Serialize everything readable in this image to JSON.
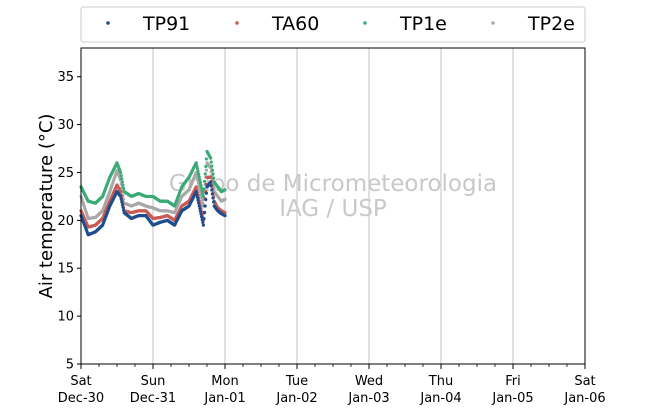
{
  "chart_data": {
    "type": "scatter",
    "ylabel": "Air temperature (°C)",
    "ylim": [
      5,
      38
    ],
    "yticks": [
      5,
      10,
      15,
      20,
      25,
      30,
      35
    ],
    "xlim_days": [
      0,
      7
    ],
    "xticks": [
      {
        "day": 0,
        "dow": "Sat",
        "date": "Dec-30"
      },
      {
        "day": 1,
        "dow": "Sun",
        "date": "Dec-31"
      },
      {
        "day": 2,
        "dow": "Mon",
        "date": "Jan-01"
      },
      {
        "day": 3,
        "dow": "Tue",
        "date": "Jan-02"
      },
      {
        "day": 4,
        "dow": "Wed",
        "date": "Jan-03"
      },
      {
        "day": 5,
        "dow": "Thu",
        "date": "Jan-04"
      },
      {
        "day": 6,
        "dow": "Fri",
        "date": "Jan-05"
      },
      {
        "day": 7,
        "dow": "Sat",
        "date": "Jan-06"
      }
    ],
    "grid": "vertical",
    "legend_position": "top",
    "watermark": [
      "Grupo de Micrometeorologia",
      "IAG / USP"
    ],
    "x": [
      0,
      0.1,
      0.2,
      0.3,
      0.4,
      0.5,
      0.55,
      0.6,
      0.7,
      0.8,
      0.9,
      1.0,
      1.1,
      1.2,
      1.3,
      1.4,
      1.5,
      1.6,
      1.7,
      1.75,
      1.8,
      1.85,
      1.9,
      1.95,
      2.0
    ],
    "series": [
      {
        "name": "TP91",
        "color": "#1f4e8c",
        "values": [
          20.5,
          18.5,
          18.8,
          19.5,
          21.5,
          23.0,
          22.5,
          20.8,
          20.2,
          20.5,
          20.5,
          19.5,
          19.8,
          20.0,
          19.5,
          21.0,
          21.5,
          23.0,
          19.5,
          23.5,
          24.0,
          21.5,
          21.0,
          20.7,
          20.5
        ]
      },
      {
        "name": "TA60",
        "color": "#c85a54",
        "values": [
          21.0,
          19.3,
          19.5,
          20.2,
          22.0,
          23.7,
          23.0,
          21.0,
          20.8,
          21.0,
          21.0,
          20.2,
          20.3,
          20.5,
          20.0,
          21.5,
          22.0,
          23.5,
          20.0,
          24.5,
          24.5,
          22.0,
          21.3,
          21.0,
          20.8
        ]
      },
      {
        "name": "TP1e",
        "color": "#3aaa76",
        "values": [
          23.5,
          22.0,
          21.8,
          22.5,
          24.5,
          26.0,
          25.0,
          23.0,
          22.5,
          22.8,
          22.5,
          22.5,
          22.0,
          22.0,
          21.5,
          23.5,
          24.5,
          26.0,
          22.5,
          27.2,
          26.5,
          24.0,
          23.5,
          23.0,
          23.2
        ]
      },
      {
        "name": "TP2e",
        "color": "#a8a8a8",
        "values": [
          22.5,
          20.2,
          20.3,
          21.0,
          23.0,
          25.2,
          24.2,
          21.8,
          21.5,
          21.8,
          21.5,
          21.3,
          21.0,
          21.0,
          20.8,
          22.5,
          23.2,
          25.0,
          21.5,
          26.0,
          25.5,
          23.0,
          22.5,
          22.0,
          22.2
        ]
      }
    ]
  }
}
